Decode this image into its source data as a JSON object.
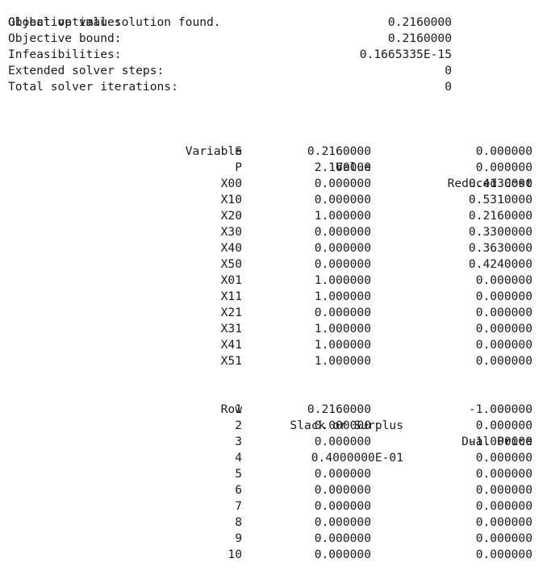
{
  "summary": {
    "status": "Global optimal solution found.",
    "rows": [
      {
        "label": "Objective value:",
        "value": "0.2160000"
      },
      {
        "label": "Objective bound:",
        "value": "0.2160000"
      },
      {
        "label": "Infeasibilities:",
        "value": "0.1665335E-15"
      },
      {
        "label": "Extended solver steps:",
        "value": "0"
      },
      {
        "label": "Total solver iterations:",
        "value": "0"
      }
    ]
  },
  "variables": {
    "headers": {
      "variable": "Variable",
      "value": "Value",
      "reduced_cost": "Reduced Cost"
    },
    "rows": [
      {
        "name": "S",
        "value": "0.2160000",
        "reduced_cost": "0.000000"
      },
      {
        "name": "P",
        "value": "2.160000",
        "reduced_cost": "0.000000"
      },
      {
        "name": "X00",
        "value": "0.000000",
        "reduced_cost": "0.4130000"
      },
      {
        "name": "X10",
        "value": "0.000000",
        "reduced_cost": "0.5310000"
      },
      {
        "name": "X20",
        "value": "1.000000",
        "reduced_cost": "0.2160000"
      },
      {
        "name": "X30",
        "value": "0.000000",
        "reduced_cost": "0.3300000"
      },
      {
        "name": "X40",
        "value": "0.000000",
        "reduced_cost": "0.3630000"
      },
      {
        "name": "X50",
        "value": "0.000000",
        "reduced_cost": "0.4240000"
      },
      {
        "name": "X01",
        "value": "1.000000",
        "reduced_cost": "0.000000"
      },
      {
        "name": "X11",
        "value": "1.000000",
        "reduced_cost": "0.000000"
      },
      {
        "name": "X21",
        "value": "0.000000",
        "reduced_cost": "0.000000"
      },
      {
        "name": "X31",
        "value": "1.000000",
        "reduced_cost": "0.000000"
      },
      {
        "name": "X41",
        "value": "1.000000",
        "reduced_cost": "0.000000"
      },
      {
        "name": "X51",
        "value": "1.000000",
        "reduced_cost": "0.000000"
      }
    ]
  },
  "constraints": {
    "headers": {
      "row": "Row",
      "slack": "Slack or Surplus",
      "dual": "Dual Price"
    },
    "rows": [
      {
        "row": "1",
        "slack": "0.2160000",
        "dual": "-1.000000"
      },
      {
        "row": "2",
        "slack": "0.000000",
        "dual": "0.000000"
      },
      {
        "row": "3",
        "slack": "0.000000",
        "dual": "-1.000000"
      },
      {
        "row": "4",
        "slack": "0.4000000E-01",
        "dual": "0.000000"
      },
      {
        "row": "5",
        "slack": "0.000000",
        "dual": "0.000000"
      },
      {
        "row": "6",
        "slack": "0.000000",
        "dual": "0.000000"
      },
      {
        "row": "7",
        "slack": "0.000000",
        "dual": "0.000000"
      },
      {
        "row": "8",
        "slack": "0.000000",
        "dual": "0.000000"
      },
      {
        "row": "9",
        "slack": "0.000000",
        "dual": "0.000000"
      },
      {
        "row": "10",
        "slack": "0.000000",
        "dual": "0.000000"
      }
    ]
  }
}
